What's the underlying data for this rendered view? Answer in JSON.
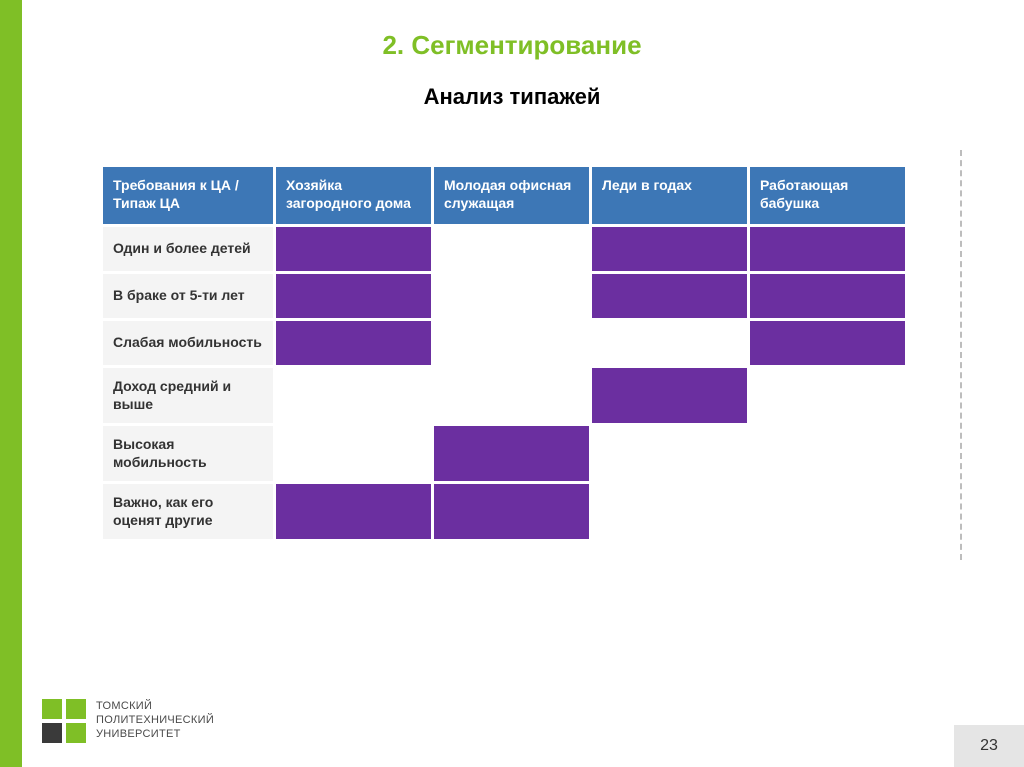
{
  "colors": {
    "accent_green": "#7fbf26",
    "header_blue": "#3d77b6",
    "cell_purple": "#6b2fa0",
    "row_bg": "#f4f4f4",
    "dash": "#bdbdbd",
    "pagebox_bg": "#e5e5e5",
    "logo_dark": "#3a3a3a"
  },
  "heading": "2. Сегментирование",
  "subheading": "Анализ типажей",
  "table": {
    "type": "table",
    "header_bg": "#3d77b6",
    "header_text_color": "#ffffff",
    "fill_color": "#6b2fa0",
    "empty_color": "#ffffff",
    "rowlabel_bg": "#f4f4f4",
    "columns": [
      "Требования к ЦА / Типаж ЦА",
      "Хозяйка загородного дома",
      "Молодая офисная служащая",
      "Леди в годах",
      "Работающая бабушка"
    ],
    "rows": [
      {
        "label": "Один и более детей",
        "cells": [
          true,
          false,
          true,
          true
        ]
      },
      {
        "label": "В браке от 5-ти лет",
        "cells": [
          true,
          false,
          true,
          true
        ]
      },
      {
        "label": "Слабая мобильность",
        "cells": [
          true,
          false,
          false,
          true
        ]
      },
      {
        "label": "Доход средний и выше",
        "cells": [
          false,
          false,
          true,
          false
        ]
      },
      {
        "label": "Высокая мобильность",
        "cells": [
          false,
          true,
          false,
          false
        ]
      },
      {
        "label": "Важно, как его оценят другие",
        "cells": [
          true,
          true,
          false,
          false
        ]
      }
    ]
  },
  "logo": {
    "line1": "ТОМСКИЙ",
    "line2": "ПОЛИТЕХНИЧЕСКИЙ",
    "line3": "УНИВЕРСИТЕТ",
    "mark_colors": [
      "#7fbf26",
      "#7fbf26",
      "#3a3a3a",
      "#7fbf26"
    ]
  },
  "page_number": "23"
}
